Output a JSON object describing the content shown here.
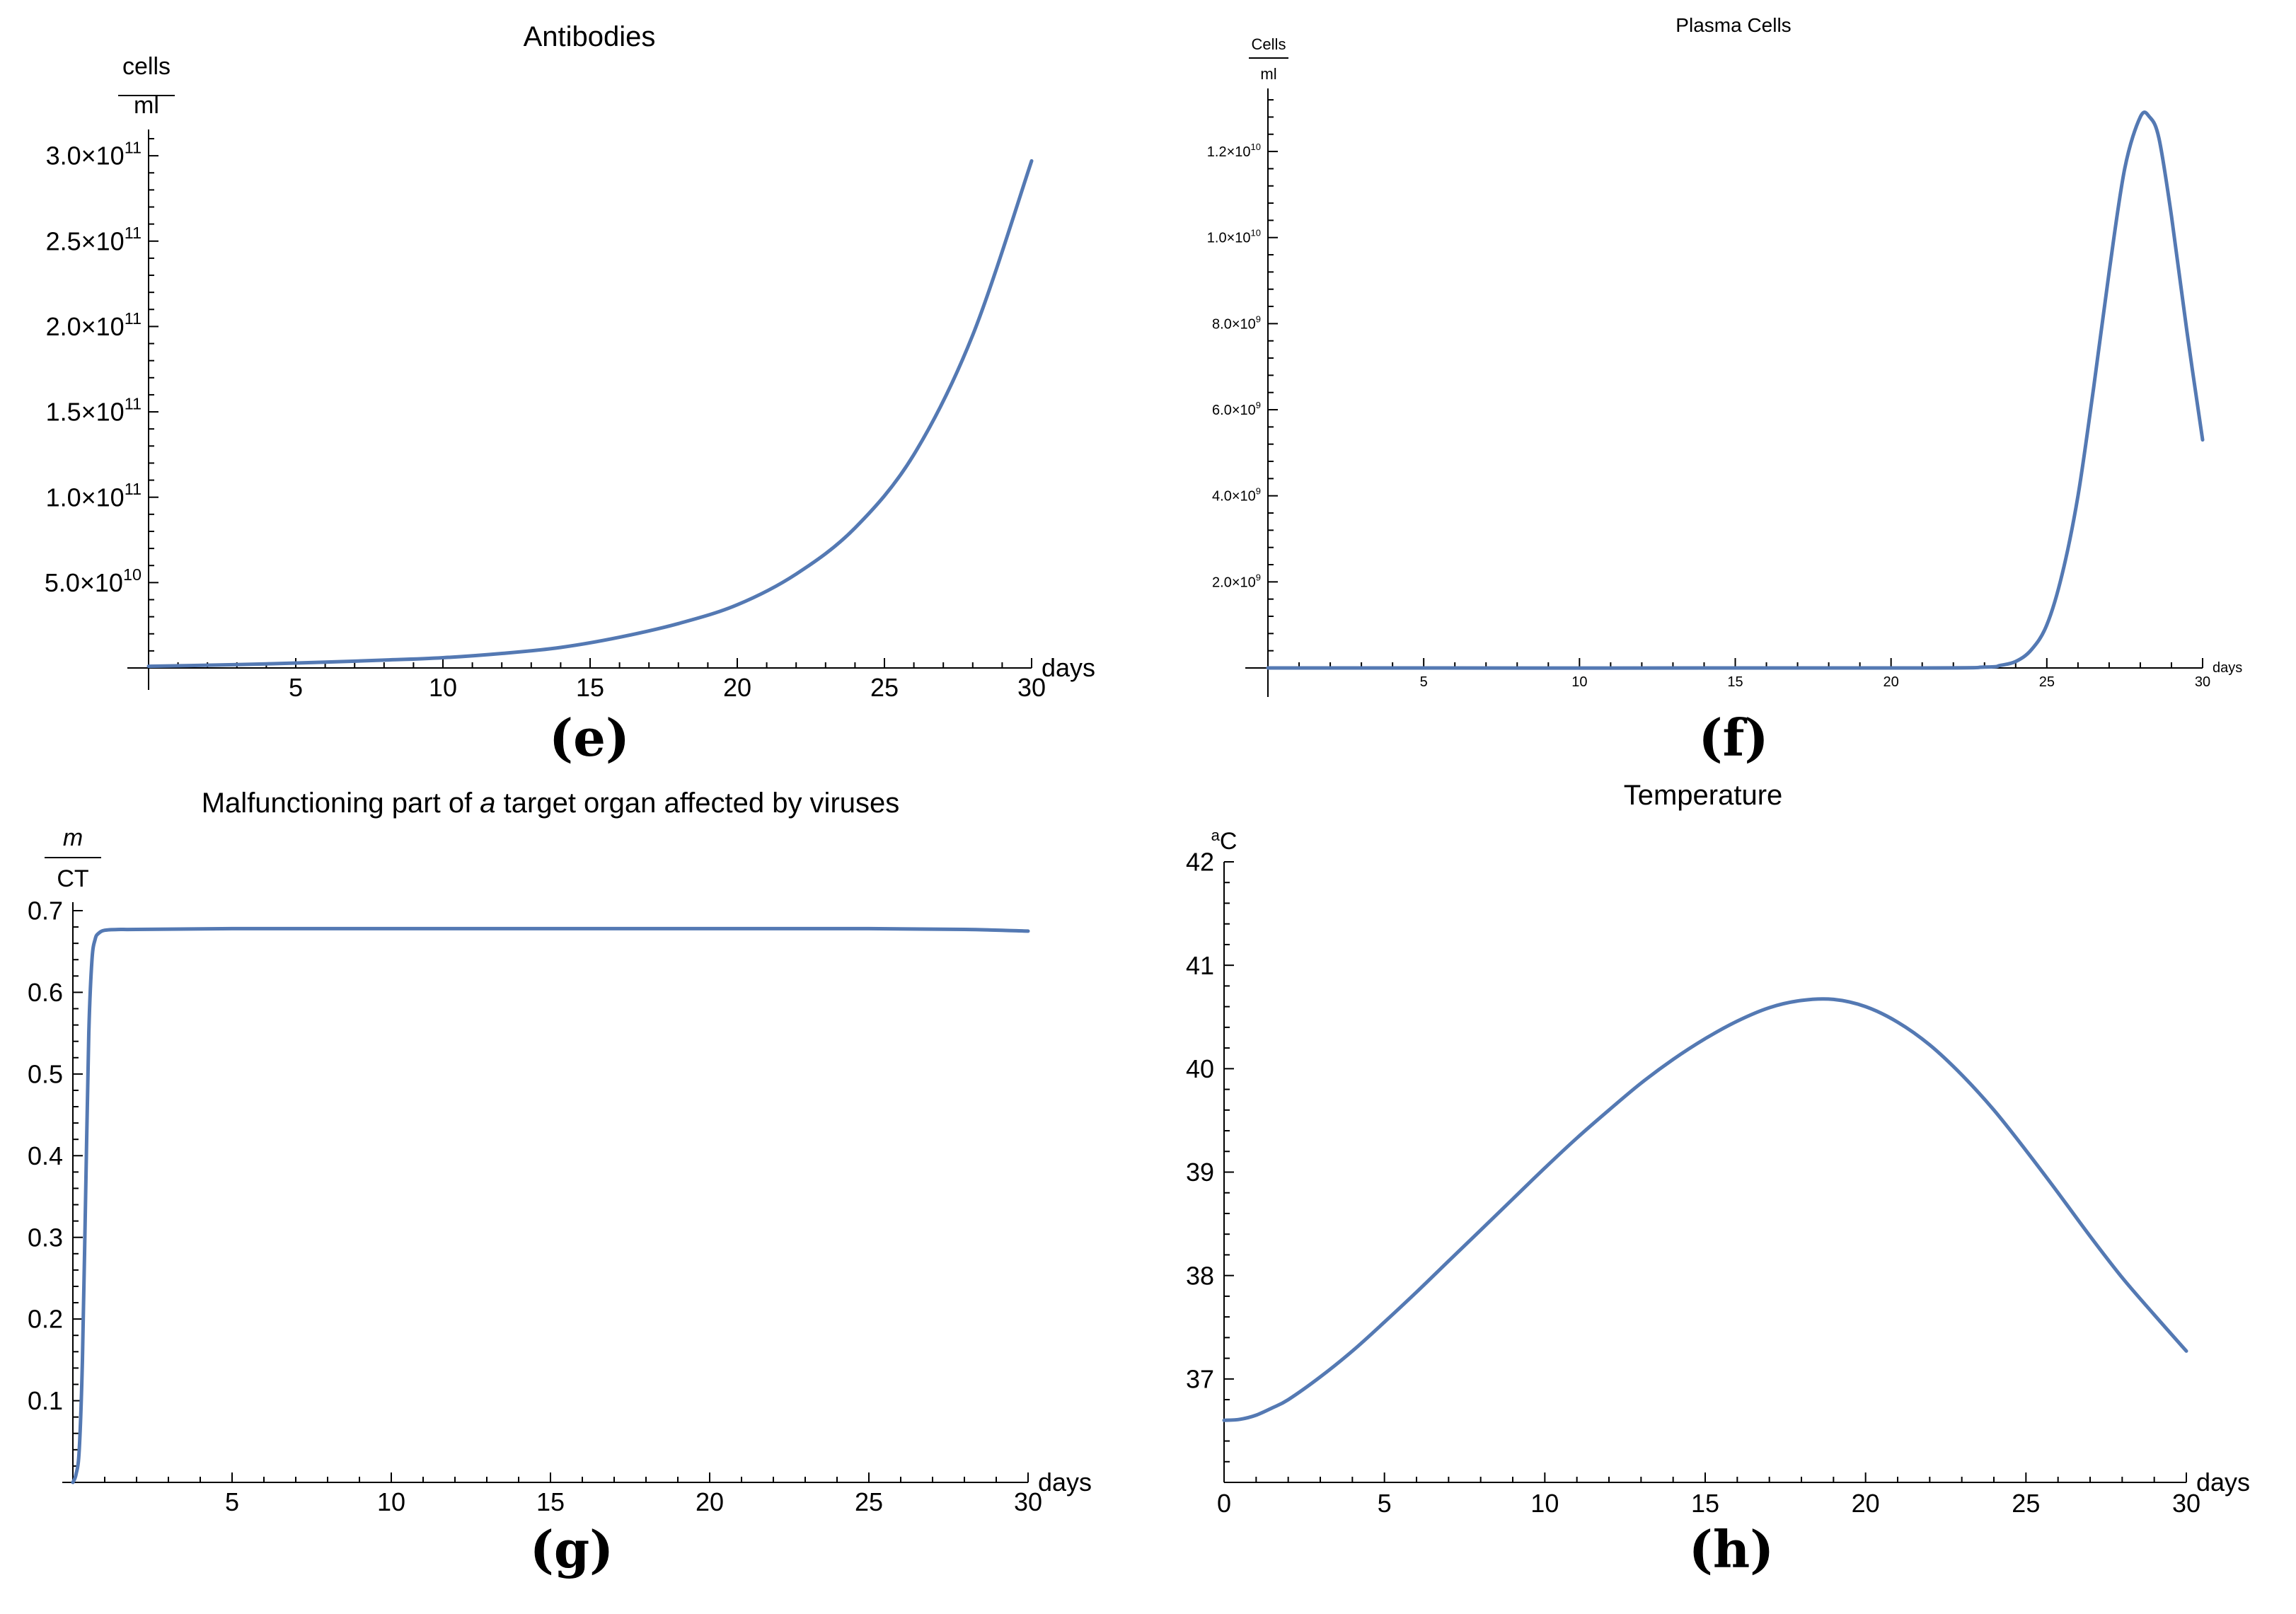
{
  "chart_data": [
    {
      "id": "e",
      "type": "line",
      "title": "Antibodies",
      "panel_label": "(e)",
      "xlabel": "days",
      "ylabel_num": "cells",
      "ylabel_den": "ml",
      "xlim": [
        0,
        30
      ],
      "ylim": [
        0,
        310000000000
      ],
      "xticks": [
        5,
        10,
        15,
        20,
        25,
        30
      ],
      "yticks": [
        {
          "value": 50000000000,
          "mant": "5.0",
          "exp": "10"
        },
        {
          "value": 100000000000,
          "mant": "1.0",
          "exp": "11"
        },
        {
          "value": 150000000000,
          "mant": "1.5",
          "exp": "11"
        },
        {
          "value": 200000000000,
          "mant": "2.0",
          "exp": "11"
        },
        {
          "value": 250000000000,
          "mant": "2.5",
          "exp": "11"
        },
        {
          "value": 300000000000,
          "mant": "3.0",
          "exp": "11"
        }
      ],
      "series": [
        {
          "name": "Antibodies",
          "x": [
            0,
            2,
            4,
            6,
            8,
            10,
            12,
            14,
            16,
            18,
            20,
            22,
            24,
            26,
            28,
            30
          ],
          "y": [
            1000000000,
            1600000000,
            2400000000,
            3400000000,
            4600000000,
            6000000000,
            8500000000,
            12000000000,
            18000000000,
            26000000000,
            37000000000,
            55000000000,
            82000000000,
            125000000000,
            195000000000,
            297000000000
          ]
        }
      ]
    },
    {
      "id": "f",
      "type": "line",
      "title": "Plasma Cells",
      "panel_label": "(f)",
      "xlabel": "days",
      "ylabel_num": "Cells",
      "ylabel_den": "ml",
      "xlim": [
        0,
        30
      ],
      "ylim": [
        0,
        13300000000
      ],
      "xticks": [
        5,
        10,
        15,
        20,
        25,
        30
      ],
      "yticks": [
        {
          "value": 2000000000,
          "mant": "2.0",
          "exp": "9"
        },
        {
          "value": 4000000000,
          "mant": "4.0",
          "exp": "9"
        },
        {
          "value": 6000000000,
          "mant": "6.0",
          "exp": "9"
        },
        {
          "value": 8000000000,
          "mant": "8.0",
          "exp": "9"
        },
        {
          "value": 10000000000,
          "mant": "1.0",
          "exp": "10"
        },
        {
          "value": 12000000000,
          "mant": "1.2",
          "exp": "10"
        }
      ],
      "series": [
        {
          "name": "Plasma Cells",
          "x": [
            0,
            20,
            23,
            23.5,
            24,
            24.5,
            25,
            25.5,
            26,
            26.5,
            27,
            27.5,
            28,
            28.3,
            28.6,
            29,
            29.5,
            30
          ],
          "y": [
            0,
            0,
            20000000,
            60000000,
            150000000,
            420000000,
            1000000000,
            2200000000,
            4000000000,
            6500000000,
            9200000000,
            11600000000,
            12800000000,
            12800000000,
            12300000000,
            10500000000,
            7800000000,
            5300000000
          ]
        }
      ]
    },
    {
      "id": "g",
      "type": "line",
      "title_pre": "Malfunctioning part of ",
      "title_italic": "a",
      "title_post": " target organ affected by viruses",
      "panel_label": "(g)",
      "xlabel": "days",
      "ylabel_num": "m",
      "ylabel_den": "CT",
      "xlim": [
        0,
        30
      ],
      "ylim": [
        0,
        0.7
      ],
      "xticks": [
        5,
        10,
        15,
        20,
        25,
        30
      ],
      "yticks": [
        {
          "value": 0.1,
          "label": "0.1"
        },
        {
          "value": 0.2,
          "label": "0.2"
        },
        {
          "value": 0.3,
          "label": "0.3"
        },
        {
          "value": 0.4,
          "label": "0.4"
        },
        {
          "value": 0.5,
          "label": "0.5"
        },
        {
          "value": 0.6,
          "label": "0.6"
        },
        {
          "value": 0.7,
          "label": "0.7"
        }
      ],
      "series": [
        {
          "name": "Malfunctioning part",
          "x": [
            0,
            0.1,
            0.2,
            0.3,
            0.4,
            0.5,
            0.6,
            0.7,
            0.8,
            1.0,
            1.5,
            2,
            5,
            10,
            15,
            20,
            25,
            28,
            30
          ],
          "y": [
            0,
            0.01,
            0.04,
            0.15,
            0.35,
            0.55,
            0.64,
            0.665,
            0.672,
            0.676,
            0.677,
            0.677,
            0.678,
            0.678,
            0.678,
            0.678,
            0.678,
            0.677,
            0.675
          ]
        }
      ]
    },
    {
      "id": "h",
      "type": "line",
      "title": "Temperature",
      "panel_label": "(h)",
      "xlabel": "days",
      "ylabel_sup": "a",
      "ylabel_main": "C",
      "xlim": [
        0,
        30
      ],
      "ylim": [
        36,
        42
      ],
      "xticks": [
        0,
        5,
        10,
        15,
        20,
        25,
        30
      ],
      "yticks": [
        {
          "value": 37,
          "label": "37"
        },
        {
          "value": 38,
          "label": "38"
        },
        {
          "value": 39,
          "label": "39"
        },
        {
          "value": 40,
          "label": "40"
        },
        {
          "value": 41,
          "label": "41"
        },
        {
          "value": 42,
          "label": "42"
        }
      ],
      "series": [
        {
          "name": "Temperature",
          "x": [
            0,
            0.5,
            1,
            1.5,
            2,
            3,
            4,
            5,
            6,
            7,
            8,
            9,
            10,
            11,
            12,
            13,
            14,
            15,
            16,
            17,
            18,
            19,
            20,
            21,
            22,
            23,
            24,
            25,
            26,
            27,
            28,
            29,
            30
          ],
          "y": [
            36.6,
            36.61,
            36.65,
            36.72,
            36.8,
            37.02,
            37.27,
            37.55,
            37.84,
            38.14,
            38.44,
            38.74,
            39.04,
            39.33,
            39.6,
            39.86,
            40.09,
            40.29,
            40.46,
            40.59,
            40.66,
            40.67,
            40.6,
            40.45,
            40.23,
            39.94,
            39.6,
            39.21,
            38.8,
            38.38,
            37.98,
            37.62,
            37.27
          ]
        }
      ]
    }
  ]
}
